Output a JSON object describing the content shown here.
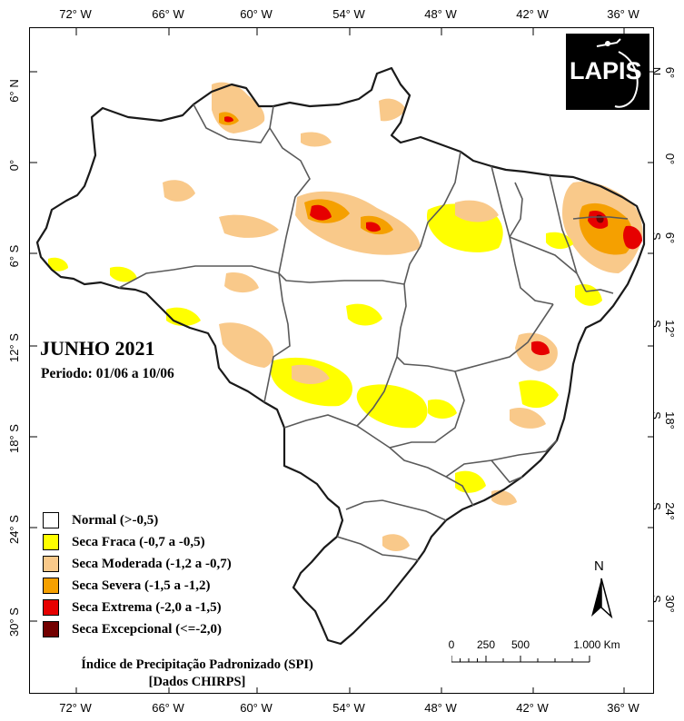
{
  "map": {
    "title": "JUNHO 2021",
    "period": "Periodo: 01/06 a 10/06",
    "credit_line1": "Índice de Precipitação Padronizado (SPI)",
    "credit_line2": "[Dados CHIRPS]",
    "logo_text": "LAPIS",
    "north_label": "N",
    "scale_labels": [
      "0",
      "250",
      "500",
      "1.000 Km"
    ]
  },
  "graticule": {
    "longitudes": [
      "72° W",
      "66° W",
      "60° W",
      "54° W",
      "48° W",
      "42° W",
      "36° W"
    ],
    "latitudes": [
      "6° N",
      "0°",
      "6° S",
      "12° S",
      "18° S",
      "24° S",
      "30° S"
    ]
  },
  "legend": [
    {
      "label": "Normal (>-0,5)",
      "color": "#ffffff"
    },
    {
      "label": "Seca Fraca (-0,7 a -0,5)",
      "color": "#ffff00"
    },
    {
      "label": "Seca Moderada (-1,2 a -0,7)",
      "color": "#f9c98a"
    },
    {
      "label": "Seca Severa (-1,5 a -1,2)",
      "color": "#f5a000"
    },
    {
      "label": "Seca Extrema (-2,0 a -1,5)",
      "color": "#e60000"
    },
    {
      "label": "Seca Excepcional (<=-2,0)",
      "color": "#730000"
    }
  ]
}
